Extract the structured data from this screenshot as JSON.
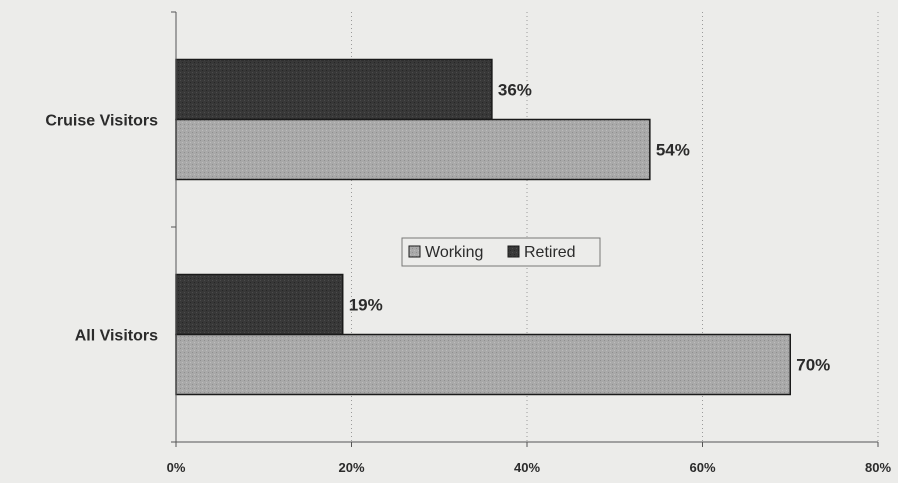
{
  "chart_data": {
    "type": "bar",
    "orientation": "horizontal",
    "categories": [
      "Cruise Visitors",
      "All Visitors"
    ],
    "series": [
      {
        "name": "Retired",
        "values": [
          36,
          19
        ],
        "labels": [
          "36%",
          "19%"
        ],
        "color": "#3a3a3a"
      },
      {
        "name": "Working",
        "values": [
          54,
          70
        ],
        "labels": [
          "54%",
          "70%"
        ],
        "color": "#a9a9a9"
      }
    ],
    "xlim": [
      0,
      80
    ],
    "x_ticks": [
      0,
      20,
      40,
      60,
      80
    ],
    "x_tick_labels": [
      "0%",
      "20%",
      "40%",
      "60%",
      "80%"
    ],
    "grid": "vertical dotted",
    "legend": {
      "placement": "center",
      "entries": [
        "Working",
        "Retired"
      ]
    }
  }
}
